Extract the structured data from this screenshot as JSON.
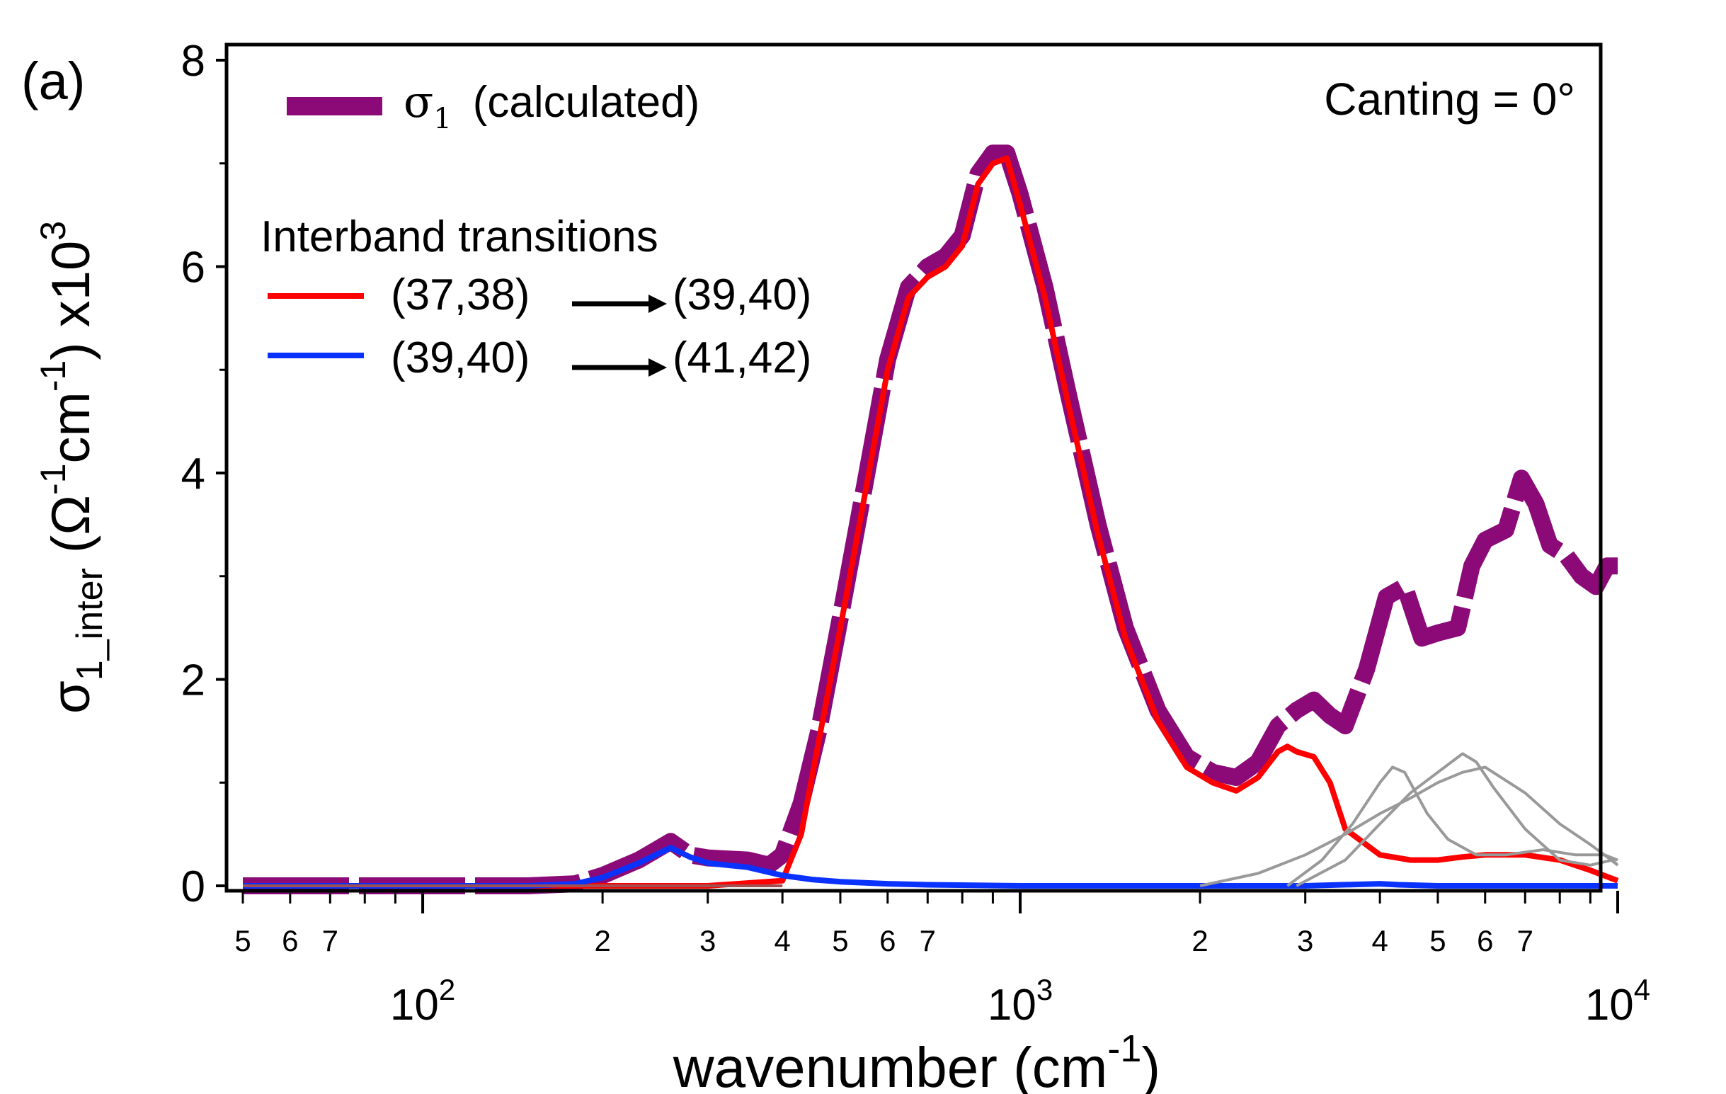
{
  "panel_label": "(a)",
  "annotation": "Canting = 0°",
  "chart_data": {
    "type": "line",
    "xscale": "log",
    "xlim": [
      50,
      10000
    ],
    "ylim": [
      0,
      8
    ],
    "xlabel": {
      "text": "wavenumber (cm",
      "sup": "-1",
      "tail": ")"
    },
    "ylabel": {
      "sigma": "σ",
      "sub": "1_inter",
      "open": " (Ω",
      "sup1": "-1",
      "cm": "cm",
      "sup2": "-1",
      "mid": ") x10",
      "sup3": "3"
    },
    "y_ticks": [
      0,
      2,
      4,
      6,
      8
    ],
    "y_tick_labels": [
      "0",
      "2",
      "4",
      "6",
      "8"
    ],
    "x_decade_ticks": [
      100,
      1000,
      10000
    ],
    "x_decade_labels": [
      {
        "base": "10",
        "exp": "2"
      },
      {
        "base": "10",
        "exp": "3"
      },
      {
        "base": "10",
        "exp": "4"
      }
    ],
    "x_minor_ticks": [
      {
        "value": 50,
        "label": "5"
      },
      {
        "value": 60,
        "label": "6"
      },
      {
        "value": 70,
        "label": "7"
      },
      {
        "value": 80,
        "label": ""
      },
      {
        "value": 90,
        "label": ""
      },
      {
        "value": 200,
        "label": "2"
      },
      {
        "value": 300,
        "label": "3"
      },
      {
        "value": 400,
        "label": "4"
      },
      {
        "value": 500,
        "label": "5"
      },
      {
        "value": 600,
        "label": "6"
      },
      {
        "value": 700,
        "label": "7"
      },
      {
        "value": 800,
        "label": ""
      },
      {
        "value": 900,
        "label": ""
      },
      {
        "value": 2000,
        "label": "2"
      },
      {
        "value": 3000,
        "label": "3"
      },
      {
        "value": 4000,
        "label": "4"
      },
      {
        "value": 5000,
        "label": "5"
      },
      {
        "value": 6000,
        "label": "6"
      },
      {
        "value": 7000,
        "label": "7"
      },
      {
        "value": 8000,
        "label": ""
      },
      {
        "value": 9000,
        "label": ""
      }
    ],
    "legend": {
      "calc_sigma": "σ",
      "calc_sub": "1",
      "calc_text": "(calculated)",
      "heading": "Interband transitions",
      "red_from": "(37,38)",
      "red_to": "(39,40)",
      "blue_from": "(39,40)",
      "blue_to": "(41,42)"
    },
    "series": [
      {
        "name": "σ1 (calculated)",
        "color": "#8b0a78",
        "style": "thick-dashed",
        "x": [
          50,
          100,
          150,
          180,
          200,
          230,
          260,
          280,
          300,
          350,
          380,
          400,
          430,
          460,
          500,
          550,
          600,
          650,
          700,
          750,
          800,
          850,
          900,
          950,
          1000,
          1100,
          1200,
          1350,
          1500,
          1700,
          1900,
          2100,
          2300,
          2500,
          2700,
          2900,
          3100,
          3300,
          3500,
          3800,
          4100,
          4400,
          4700,
          5000,
          5400,
          5700,
          6000,
          6500,
          6900,
          7300,
          7700,
          8200,
          8700,
          9200,
          9600,
          10000
        ],
        "y": [
          0,
          0,
          0,
          0.02,
          0.1,
          0.25,
          0.43,
          0.3,
          0.27,
          0.25,
          0.2,
          0.3,
          0.8,
          1.5,
          2.6,
          3.9,
          5.1,
          5.8,
          6.0,
          6.1,
          6.3,
          6.9,
          7.1,
          7.1,
          6.7,
          5.8,
          4.8,
          3.5,
          2.5,
          1.7,
          1.25,
          1.1,
          1.05,
          1.2,
          1.55,
          1.7,
          1.8,
          1.65,
          1.55,
          2.1,
          2.8,
          2.9,
          2.4,
          2.45,
          2.5,
          3.1,
          3.35,
          3.45,
          3.95,
          3.7,
          3.3,
          3.2,
          3.0,
          2.9,
          3.1,
          3.1
        ]
      },
      {
        "name": "(37,38) → (39,40)",
        "color": "#ff0000",
        "style": "solid",
        "x": [
          50,
          300,
          400,
          430,
          460,
          500,
          550,
          600,
          650,
          700,
          750,
          800,
          850,
          900,
          950,
          1000,
          1100,
          1200,
          1350,
          1500,
          1700,
          1900,
          2100,
          2300,
          2500,
          2700,
          2800,
          2900,
          3100,
          3300,
          3500,
          4000,
          4500,
          5000,
          5500,
          6000,
          7000,
          8000,
          9000,
          10000
        ],
        "y": [
          0,
          0,
          0.05,
          0.5,
          1.4,
          2.5,
          3.8,
          5.0,
          5.7,
          5.9,
          6.0,
          6.2,
          6.8,
          7.0,
          7.05,
          6.6,
          5.7,
          4.7,
          3.4,
          2.4,
          1.6,
          1.15,
          1.0,
          0.92,
          1.05,
          1.3,
          1.35,
          1.3,
          1.25,
          1.0,
          0.55,
          0.3,
          0.25,
          0.25,
          0.28,
          0.3,
          0.3,
          0.25,
          0.15,
          0.05
        ]
      },
      {
        "name": "(39,40) → (41,42)",
        "color": "#0a32ff",
        "style": "solid",
        "x": [
          50,
          150,
          180,
          200,
          230,
          260,
          280,
          300,
          350,
          400,
          450,
          500,
          600,
          700,
          1000,
          2000,
          3000,
          4000,
          4300,
          5000,
          10000
        ],
        "y": [
          0,
          0,
          0.02,
          0.08,
          0.22,
          0.37,
          0.28,
          0.22,
          0.18,
          0.1,
          0.06,
          0.04,
          0.02,
          0.01,
          0,
          0,
          0,
          0.02,
          0.01,
          0,
          0
        ]
      },
      {
        "name": "gray-1",
        "color": "#999999",
        "style": "thin",
        "x": [
          2000,
          2500,
          3000,
          3500,
          4000,
          4500,
          5000,
          5500,
          6000,
          7000,
          8000,
          9000,
          9500,
          10000
        ],
        "y": [
          0,
          0.12,
          0.3,
          0.5,
          0.7,
          0.85,
          1.0,
          1.1,
          1.15,
          0.9,
          0.6,
          0.4,
          0.3,
          0.2
        ]
      },
      {
        "name": "gray-2",
        "color": "#999999",
        "style": "thin",
        "x": [
          2800,
          3200,
          3600,
          4000,
          4200,
          4400,
          4800,
          5200,
          5800,
          6500,
          7500,
          8500,
          9500,
          10000
        ],
        "y": [
          0,
          0.25,
          0.6,
          1.0,
          1.15,
          1.1,
          0.7,
          0.45,
          0.3,
          0.3,
          0.35,
          0.3,
          0.3,
          0.25
        ]
      },
      {
        "name": "gray-3",
        "color": "#999999",
        "style": "thin",
        "x": [
          2900,
          3500,
          4000,
          4500,
          5000,
          5500,
          5800,
          6200,
          7000,
          8000,
          9000,
          9800,
          10000
        ],
        "y": [
          0,
          0.25,
          0.6,
          0.9,
          1.1,
          1.28,
          1.2,
          0.95,
          0.55,
          0.25,
          0.2,
          0.25,
          0.2
        ]
      },
      {
        "name": "brown-baseline",
        "color": "#a05050",
        "style": "thin",
        "x": [
          50,
          400
        ],
        "y": [
          0,
          0
        ]
      }
    ]
  }
}
